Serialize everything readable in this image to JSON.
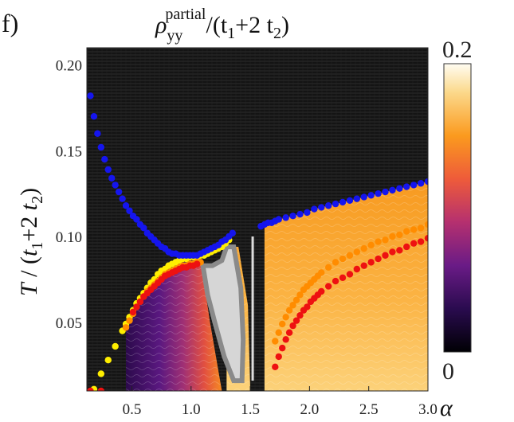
{
  "panel_label": "f)",
  "title": "ρyy^partial/(t1+2 t2)",
  "title_parts": {
    "rho": "ρ",
    "sub": "yy",
    "sup": "partial",
    "rest": "/(t",
    "s1": "1",
    "mid": "+2 t",
    "s2": "2",
    "end": ")"
  },
  "colors": {
    "background": "#151515",
    "gray_region": "#d6d6d6",
    "gray_border": "#8a8a8a",
    "blue": "#1515ee",
    "yellow": "#ffee00",
    "orange": "#ff8c00",
    "red": "#ee1111"
  },
  "chart_data": {
    "type": "heatmap",
    "title": "ρ_yy^partial/(t1+2 t2)",
    "xlabel": "α",
    "ylabel": "T / (t1+2 t2)",
    "xlim": [
      0.12,
      3.0
    ],
    "ylim": [
      0.01,
      0.21
    ],
    "x_ticks": [
      0.5,
      1.0,
      1.5,
      2.0,
      2.5,
      3.0
    ],
    "x_tick_labels": [
      "0.5",
      "1.0",
      "1.5",
      "2.0",
      "2.5",
      "3.0"
    ],
    "y_ticks": [
      0.05,
      0.1,
      0.15,
      0.2
    ],
    "y_tick_labels": [
      "0.05",
      "0.10",
      "0.15",
      "0.20"
    ],
    "colorbar": {
      "min": 0,
      "max": 0.2,
      "min_label": "0",
      "max_label": "0.2",
      "colormap": "inferno"
    },
    "series": [
      {
        "name": "blue",
        "color": "#1515ee",
        "x": [
          0.15,
          0.18,
          0.21,
          0.24,
          0.27,
          0.3,
          0.33,
          0.36,
          0.39,
          0.42,
          0.45,
          0.48,
          0.51,
          0.54,
          0.57,
          0.6,
          0.63,
          0.66,
          0.69,
          0.72,
          0.75,
          0.78,
          0.81,
          0.84,
          0.87,
          0.9,
          0.93,
          0.96,
          0.99,
          1.02,
          1.05,
          1.08,
          1.11,
          1.14,
          1.17,
          1.2,
          1.23,
          1.26,
          1.29,
          1.32,
          1.35,
          1.59,
          1.62,
          1.65,
          1.68,
          1.71,
          1.74,
          1.8,
          1.86,
          1.92,
          1.98,
          2.04,
          2.1,
          2.16,
          2.22,
          2.28,
          2.34,
          2.4,
          2.46,
          2.52,
          2.58,
          2.64,
          2.7,
          2.76,
          2.82,
          2.88,
          2.94,
          3.0
        ],
        "y": [
          0.182,
          0.17,
          0.16,
          0.152,
          0.145,
          0.139,
          0.134,
          0.13,
          0.126,
          0.122,
          0.118,
          0.115,
          0.112,
          0.11,
          0.107,
          0.105,
          0.102,
          0.1,
          0.098,
          0.096,
          0.094,
          0.093,
          0.091,
          0.09,
          0.09,
          0.089,
          0.089,
          0.089,
          0.089,
          0.089,
          0.089,
          0.09,
          0.091,
          0.092,
          0.093,
          0.094,
          0.095,
          0.097,
          0.098,
          0.1,
          0.102,
          0.106,
          0.107,
          0.108,
          0.108,
          0.109,
          0.11,
          0.111,
          0.112,
          0.113,
          0.114,
          0.116,
          0.117,
          0.118,
          0.119,
          0.12,
          0.121,
          0.122,
          0.123,
          0.124,
          0.125,
          0.126,
          0.127,
          0.128,
          0.129,
          0.13,
          0.131,
          0.132
        ]
      },
      {
        "name": "yellow",
        "color": "#ffee00",
        "x": [
          0.18,
          0.24,
          0.3,
          0.36,
          0.42,
          0.45,
          0.48,
          0.51,
          0.54,
          0.57,
          0.6,
          0.63,
          0.66,
          0.69,
          0.72,
          0.75,
          0.78,
          0.81,
          0.84,
          0.87,
          0.9,
          0.93,
          0.96,
          0.99,
          1.02,
          1.05,
          1.08,
          1.11,
          1.14,
          1.17,
          1.2,
          1.23,
          1.26,
          1.29,
          1.32
        ],
        "y": [
          0.011,
          0.02,
          0.028,
          0.036,
          0.045,
          0.049,
          0.053,
          0.057,
          0.061,
          0.064,
          0.067,
          0.07,
          0.073,
          0.075,
          0.078,
          0.08,
          0.081,
          0.083,
          0.084,
          0.085,
          0.086,
          0.087,
          0.087,
          0.088,
          0.088,
          0.088,
          0.089,
          0.089,
          0.09,
          0.091,
          0.092,
          0.093,
          0.094,
          0.096,
          0.098
        ]
      },
      {
        "name": "orange",
        "color": "#ff8c00",
        "x": [
          0.45,
          0.48,
          0.51,
          0.54,
          0.57,
          0.6,
          0.63,
          0.66,
          0.69,
          0.72,
          0.75,
          0.78,
          0.81,
          0.84,
          0.87,
          0.9,
          0.93,
          0.96,
          0.99,
          1.02,
          1.05,
          1.08,
          1.71,
          1.74,
          1.77,
          1.8,
          1.83,
          1.86,
          1.89,
          1.92,
          1.95,
          1.98,
          2.01,
          2.04,
          2.07,
          2.1,
          2.16,
          2.22,
          2.28,
          2.34,
          2.4,
          2.46,
          2.52,
          2.58,
          2.64,
          2.7,
          2.76,
          2.82,
          2.88,
          2.94,
          3.0
        ],
        "y": [
          0.047,
          0.051,
          0.055,
          0.059,
          0.062,
          0.065,
          0.068,
          0.07,
          0.072,
          0.074,
          0.076,
          0.078,
          0.079,
          0.08,
          0.081,
          0.082,
          0.083,
          0.083,
          0.084,
          0.084,
          0.085,
          0.085,
          0.039,
          0.044,
          0.049,
          0.053,
          0.057,
          0.06,
          0.063,
          0.066,
          0.069,
          0.071,
          0.073,
          0.075,
          0.077,
          0.079,
          0.082,
          0.085,
          0.087,
          0.089,
          0.091,
          0.093,
          0.095,
          0.097,
          0.098,
          0.1,
          0.101,
          0.103,
          0.104,
          0.105,
          0.107
        ]
      },
      {
        "name": "red",
        "color": "#ee1111",
        "x": [
          0.15,
          0.24,
          0.51,
          0.54,
          0.57,
          0.6,
          0.63,
          0.66,
          0.69,
          0.72,
          0.75,
          0.78,
          0.81,
          0.84,
          0.87,
          0.9,
          0.93,
          0.96,
          0.99,
          1.02,
          1.05,
          1.71,
          1.74,
          1.77,
          1.8,
          1.83,
          1.86,
          1.89,
          1.92,
          1.95,
          1.98,
          2.01,
          2.04,
          2.07,
          2.1,
          2.16,
          2.22,
          2.28,
          2.34,
          2.4,
          2.46,
          2.52,
          2.58,
          2.64,
          2.7,
          2.76,
          2.82,
          2.88,
          2.94,
          3.0
        ],
        "y": [
          0.01,
          0.01,
          0.056,
          0.059,
          0.062,
          0.065,
          0.067,
          0.069,
          0.071,
          0.073,
          0.075,
          0.077,
          0.078,
          0.079,
          0.08,
          0.081,
          0.082,
          0.082,
          0.083,
          0.083,
          0.084,
          0.024,
          0.03,
          0.035,
          0.04,
          0.044,
          0.048,
          0.051,
          0.054,
          0.057,
          0.059,
          0.062,
          0.064,
          0.066,
          0.068,
          0.071,
          0.074,
          0.076,
          0.078,
          0.081,
          0.083,
          0.085,
          0.087,
          0.089,
          0.091,
          0.092,
          0.094,
          0.096,
          0.097,
          0.099
        ]
      }
    ],
    "gray_region": {
      "x": [
        1.1,
        1.18,
        1.26,
        1.3,
        1.36,
        1.42,
        1.44,
        1.43,
        1.36,
        1.28,
        1.2,
        1.14,
        1.1
      ],
      "y": [
        0.083,
        0.083,
        0.086,
        0.094,
        0.094,
        0.07,
        0.04,
        0.016,
        0.016,
        0.03,
        0.05,
        0.066,
        0.083
      ]
    }
  }
}
